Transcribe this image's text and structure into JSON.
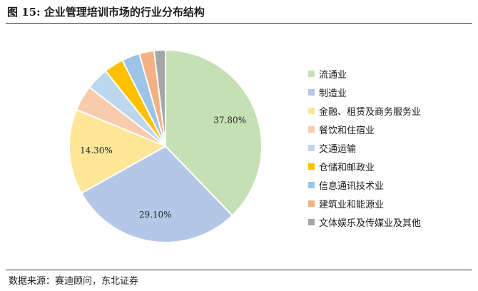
{
  "header": {
    "title": "图 15: 企业管理培训市场的行业分布结构"
  },
  "footer": {
    "source": "数据来源：赛迪顾问，东北证券"
  },
  "chart_data": {
    "type": "pie",
    "title": "",
    "legend_position": "right",
    "slices": [
      {
        "label": "流通业",
        "value": 37.8,
        "color": "#c5e0b4",
        "value_label": "37.80%"
      },
      {
        "label": "制造业",
        "value": 29.1,
        "color": "#b4c7e7",
        "value_label": "29.10%"
      },
      {
        "label": "金融、租赁及商务服务业",
        "value": 14.3,
        "color": "#ffe699",
        "value_label": "14.30%"
      },
      {
        "label": "餐饮和住宿业",
        "value": 4.3,
        "color": "#f8cbad",
        "value_label": ""
      },
      {
        "label": "交通运输",
        "value": 3.8,
        "color": "#bdd7ee",
        "value_label": ""
      },
      {
        "label": "仓储和邮政业",
        "value": 3.3,
        "color": "#ffc000",
        "value_label": ""
      },
      {
        "label": "信息通讯技术业",
        "value": 3.0,
        "color": "#9dc3e6",
        "value_label": ""
      },
      {
        "label": "建筑业和能源业",
        "value": 2.5,
        "color": "#f4b183",
        "value_label": ""
      },
      {
        "label": "文体娱乐及传媒业及其他",
        "value": 1.9,
        "color": "#a6a6a6",
        "value_label": ""
      }
    ]
  }
}
